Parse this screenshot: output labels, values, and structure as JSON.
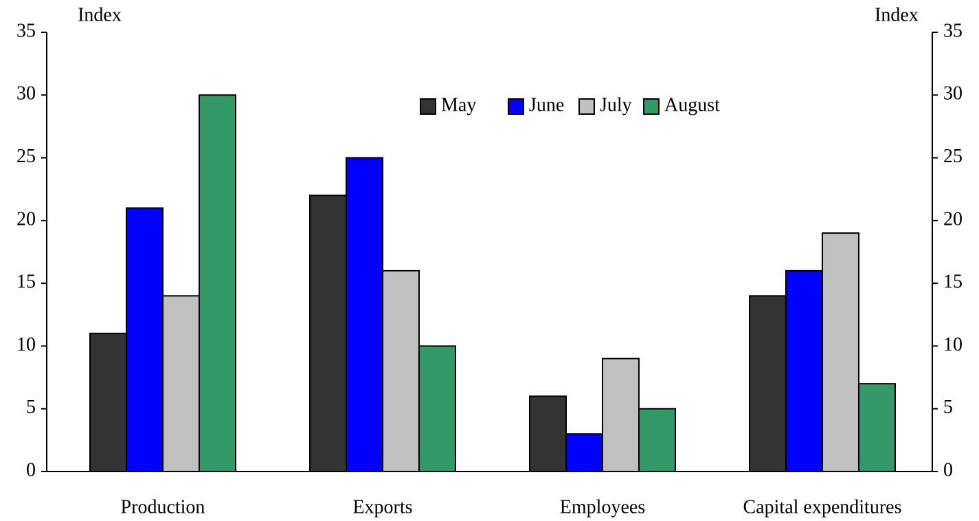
{
  "chart_data": {
    "type": "bar",
    "y_label": "Index",
    "y2_label": "Index",
    "categories": [
      "Production",
      "Exports",
      "Employees",
      "Capital expenditures"
    ],
    "series": [
      {
        "name": "May",
        "color": "#333333",
        "values": [
          11,
          22,
          6,
          14
        ]
      },
      {
        "name": "June",
        "color": "#0000ff",
        "values": [
          21,
          25,
          3,
          16
        ]
      },
      {
        "name": "July",
        "color": "#c0c0c0",
        "values": [
          14,
          16,
          9,
          19
        ]
      },
      {
        "name": "August",
        "color": "#339966",
        "values": [
          30,
          10,
          5,
          7
        ]
      }
    ],
    "ylim": [
      0,
      35
    ],
    "yticks": [
      0,
      5,
      10,
      15,
      20,
      25,
      30,
      35
    ],
    "y2lim": [
      0,
      35
    ],
    "y2ticks": [
      0,
      5,
      10,
      15,
      20,
      25,
      30,
      35
    ],
    "legend": "upper center",
    "grid": false
  }
}
